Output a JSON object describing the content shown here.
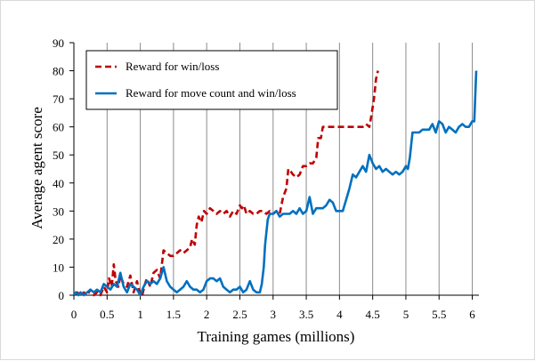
{
  "chart_data": {
    "type": "line",
    "title": "",
    "xlabel": "Training games (millions)",
    "ylabel": "Average agent score",
    "xlim": [
      0,
      6.1
    ],
    "ylim": [
      0,
      90
    ],
    "xticks": [
      0,
      0.5,
      1,
      1.5,
      2,
      2.5,
      3,
      3.5,
      4,
      4.5,
      5,
      5.5,
      6
    ],
    "xtick_labels": [
      "0",
      "0.5",
      "1",
      "1.5",
      "2",
      "2.5",
      "3",
      "3.5",
      "4",
      "4.5",
      "5",
      "5.5",
      "6"
    ],
    "yticks": [
      0,
      10,
      20,
      30,
      40,
      50,
      60,
      70,
      80,
      90
    ],
    "ytick_labels": [
      "0",
      "10",
      "20",
      "30",
      "40",
      "50",
      "60",
      "70",
      "80",
      "90"
    ],
    "grid": "vertical",
    "legend_position": "top-left",
    "series": [
      {
        "name": "Reward for win/loss",
        "color": "#c00000",
        "dash": "dashed",
        "points": [
          [
            0,
            0
          ],
          [
            0.05,
            1
          ],
          [
            0.1,
            0
          ],
          [
            0.15,
            1
          ],
          [
            0.2,
            0
          ],
          [
            0.25,
            2
          ],
          [
            0.3,
            0
          ],
          [
            0.35,
            1
          ],
          [
            0.4,
            0
          ],
          [
            0.45,
            3
          ],
          [
            0.5,
            1
          ],
          [
            0.53,
            6
          ],
          [
            0.57,
            3
          ],
          [
            0.6,
            11
          ],
          [
            0.63,
            5
          ],
          [
            0.67,
            3
          ],
          [
            0.7,
            7
          ],
          [
            0.75,
            4
          ],
          [
            0.8,
            3
          ],
          [
            0.85,
            7
          ],
          [
            0.9,
            1
          ],
          [
            0.95,
            5
          ],
          [
            1.0,
            0
          ],
          [
            1.03,
            0
          ],
          [
            1.07,
            4
          ],
          [
            1.1,
            6
          ],
          [
            1.15,
            3
          ],
          [
            1.2,
            8
          ],
          [
            1.25,
            9
          ],
          [
            1.3,
            6
          ],
          [
            1.35,
            16
          ],
          [
            1.4,
            15
          ],
          [
            1.45,
            14
          ],
          [
            1.5,
            14
          ],
          [
            1.55,
            15
          ],
          [
            1.6,
            16
          ],
          [
            1.65,
            15
          ],
          [
            1.7,
            16
          ],
          [
            1.75,
            17
          ],
          [
            1.78,
            20
          ],
          [
            1.82,
            18
          ],
          [
            1.85,
            25
          ],
          [
            1.88,
            28
          ],
          [
            1.92,
            26
          ],
          [
            1.96,
            30
          ],
          [
            2.0,
            29
          ],
          [
            2.05,
            31
          ],
          [
            2.1,
            30
          ],
          [
            2.15,
            29
          ],
          [
            2.2,
            30
          ],
          [
            2.25,
            29
          ],
          [
            2.3,
            30
          ],
          [
            2.35,
            28
          ],
          [
            2.4,
            30
          ],
          [
            2.45,
            29
          ],
          [
            2.5,
            32
          ],
          [
            2.53,
            31
          ],
          [
            2.56,
            32
          ],
          [
            2.6,
            29
          ],
          [
            2.65,
            30
          ],
          [
            2.7,
            29
          ],
          [
            2.75,
            29
          ],
          [
            2.8,
            30
          ],
          [
            2.85,
            30
          ],
          [
            2.9,
            29
          ],
          [
            2.95,
            30
          ],
          [
            3.0,
            29
          ],
          [
            3.05,
            30
          ],
          [
            3.1,
            29
          ],
          [
            3.15,
            35
          ],
          [
            3.2,
            38
          ],
          [
            3.23,
            45
          ],
          [
            3.27,
            44
          ],
          [
            3.3,
            43
          ],
          [
            3.35,
            42
          ],
          [
            3.4,
            43
          ],
          [
            3.45,
            46
          ],
          [
            3.5,
            46
          ],
          [
            3.55,
            47
          ],
          [
            3.6,
            47
          ],
          [
            3.65,
            49
          ],
          [
            3.68,
            56
          ],
          [
            3.72,
            56
          ],
          [
            3.75,
            60
          ],
          [
            3.85,
            60
          ],
          [
            3.95,
            60
          ],
          [
            4.05,
            60
          ],
          [
            4.15,
            60
          ],
          [
            4.25,
            60
          ],
          [
            4.35,
            60
          ],
          [
            4.4,
            61
          ],
          [
            4.45,
            60
          ],
          [
            4.48,
            64
          ],
          [
            4.52,
            70
          ],
          [
            4.55,
            77
          ],
          [
            4.58,
            80
          ]
        ]
      },
      {
        "name": "Reward for move count and win/loss",
        "color": "#0070c0",
        "dash": "solid",
        "points": [
          [
            0,
            0
          ],
          [
            0.03,
            1
          ],
          [
            0.07,
            0
          ],
          [
            0.1,
            1
          ],
          [
            0.15,
            0
          ],
          [
            0.2,
            1
          ],
          [
            0.25,
            2
          ],
          [
            0.3,
            1
          ],
          [
            0.35,
            2
          ],
          [
            0.4,
            1
          ],
          [
            0.45,
            4
          ],
          [
            0.5,
            3
          ],
          [
            0.55,
            2
          ],
          [
            0.6,
            4
          ],
          [
            0.65,
            3
          ],
          [
            0.7,
            8
          ],
          [
            0.75,
            3
          ],
          [
            0.8,
            1
          ],
          [
            0.85,
            4
          ],
          [
            0.9,
            3
          ],
          [
            0.95,
            2
          ],
          [
            1.0,
            0
          ],
          [
            1.05,
            3
          ],
          [
            1.1,
            5
          ],
          [
            1.15,
            4
          ],
          [
            1.2,
            5
          ],
          [
            1.25,
            4
          ],
          [
            1.3,
            6
          ],
          [
            1.35,
            10
          ],
          [
            1.4,
            5
          ],
          [
            1.45,
            3
          ],
          [
            1.5,
            2
          ],
          [
            1.55,
            1
          ],
          [
            1.6,
            2
          ],
          [
            1.65,
            3
          ],
          [
            1.7,
            5
          ],
          [
            1.75,
            3
          ],
          [
            1.8,
            2
          ],
          [
            1.85,
            2
          ],
          [
            1.9,
            1
          ],
          [
            1.95,
            2
          ],
          [
            2.0,
            5
          ],
          [
            2.05,
            6
          ],
          [
            2.1,
            6
          ],
          [
            2.15,
            5
          ],
          [
            2.2,
            6
          ],
          [
            2.25,
            3
          ],
          [
            2.3,
            2
          ],
          [
            2.35,
            1
          ],
          [
            2.4,
            2
          ],
          [
            2.45,
            2
          ],
          [
            2.5,
            3
          ],
          [
            2.55,
            1
          ],
          [
            2.6,
            2
          ],
          [
            2.65,
            5
          ],
          [
            2.7,
            2
          ],
          [
            2.75,
            1
          ],
          [
            2.8,
            1
          ],
          [
            2.83,
            4
          ],
          [
            2.86,
            10
          ],
          [
            2.88,
            18
          ],
          [
            2.92,
            27
          ],
          [
            2.95,
            29
          ],
          [
            3.0,
            29
          ],
          [
            3.05,
            30
          ],
          [
            3.1,
            28
          ],
          [
            3.15,
            29
          ],
          [
            3.2,
            29
          ],
          [
            3.25,
            29
          ],
          [
            3.3,
            30
          ],
          [
            3.35,
            29
          ],
          [
            3.4,
            31
          ],
          [
            3.45,
            29
          ],
          [
            3.5,
            30
          ],
          [
            3.55,
            35
          ],
          [
            3.6,
            29
          ],
          [
            3.65,
            31
          ],
          [
            3.7,
            31
          ],
          [
            3.75,
            31
          ],
          [
            3.8,
            32
          ],
          [
            3.85,
            34
          ],
          [
            3.9,
            33
          ],
          [
            3.95,
            30
          ],
          [
            4.0,
            30
          ],
          [
            4.05,
            30
          ],
          [
            4.1,
            34
          ],
          [
            4.15,
            38
          ],
          [
            4.2,
            43
          ],
          [
            4.25,
            42
          ],
          [
            4.3,
            44
          ],
          [
            4.35,
            46
          ],
          [
            4.4,
            44
          ],
          [
            4.45,
            50
          ],
          [
            4.5,
            47
          ],
          [
            4.55,
            45
          ],
          [
            4.6,
            46
          ],
          [
            4.65,
            44
          ],
          [
            4.7,
            45
          ],
          [
            4.75,
            44
          ],
          [
            4.8,
            43
          ],
          [
            4.85,
            44
          ],
          [
            4.9,
            43
          ],
          [
            4.95,
            44
          ],
          [
            5.0,
            46
          ],
          [
            5.03,
            45
          ],
          [
            5.06,
            49
          ],
          [
            5.1,
            58
          ],
          [
            5.15,
            58
          ],
          [
            5.2,
            58
          ],
          [
            5.25,
            59
          ],
          [
            5.3,
            59
          ],
          [
            5.35,
            59
          ],
          [
            5.4,
            61
          ],
          [
            5.45,
            58
          ],
          [
            5.5,
            62
          ],
          [
            5.55,
            61
          ],
          [
            5.6,
            58
          ],
          [
            5.65,
            60
          ],
          [
            5.7,
            59
          ],
          [
            5.75,
            58
          ],
          [
            5.8,
            60
          ],
          [
            5.85,
            61
          ],
          [
            5.9,
            60
          ],
          [
            5.95,
            60
          ],
          [
            6.0,
            62
          ],
          [
            6.03,
            62
          ],
          [
            6.06,
            80
          ]
        ]
      }
    ]
  }
}
